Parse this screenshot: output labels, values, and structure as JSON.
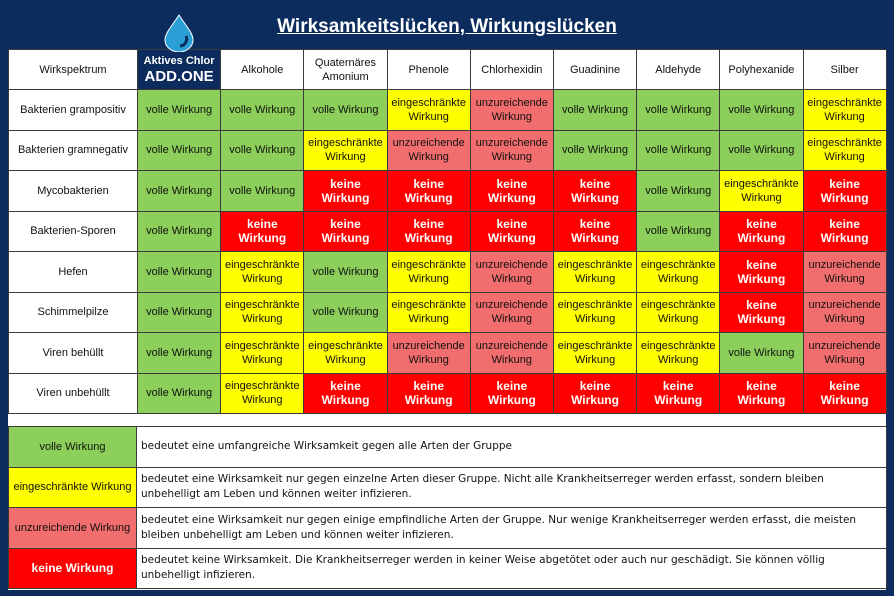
{
  "title": "Wirksamkeitslücken, Wirkungslücken",
  "table": {
    "columns": [
      "Wirkspektrum",
      {
        "top": "Aktives Chlor",
        "brand": "ADD.ONE"
      },
      "Alkohole",
      "Quaternäres Amonium",
      "Phenole",
      "Chlorhexidin",
      "Guadinine",
      "Aldehyde",
      "Polyhexanide",
      "Silber"
    ],
    "rows": [
      [
        "Bakterien grampositiv",
        "volle Wirkung",
        "volle Wirkung",
        "volle Wirkung",
        "eingeschränkte Wirkung",
        "unzureichende Wirkung",
        "volle Wirkung",
        "volle Wirkung",
        "volle Wirkung",
        "eingeschränkte Wirkung"
      ],
      [
        "Bakterien gramnegativ",
        "volle Wirkung",
        "volle Wirkung",
        "eingeschränkte Wirkung",
        "unzureichende Wirkung",
        "unzureichende Wirkung",
        "volle Wirkung",
        "volle Wirkung",
        "volle Wirkung",
        "eingeschränkte Wirkung"
      ],
      [
        "Mycobakterien",
        "volle Wirkung",
        "volle Wirkung",
        "keine Wirkung",
        "keine Wirkung",
        "keine Wirkung",
        "keine Wirkung",
        "volle Wirkung",
        "eingeschränkte Wirkung",
        "keine Wirkung"
      ],
      [
        "Bakterien-Sporen",
        "volle Wirkung",
        "keine Wirkung",
        "keine Wirkung",
        "keine Wirkung",
        "keine Wirkung",
        "keine Wirkung",
        "volle Wirkung",
        "keine Wirkung",
        "keine Wirkung"
      ],
      [
        "Hefen",
        "volle Wirkung",
        "eingeschränkte Wirkung",
        "volle Wirkung",
        "eingeschränkte Wirkung",
        "unzureichende Wirkung",
        "eingeschränkte Wirkung",
        "eingeschränkte Wirkung",
        "keine Wirkung",
        "unzureichende Wirkung"
      ],
      [
        "Schimmelpilze",
        "volle Wirkung",
        "eingeschränkte Wirkung",
        "volle Wirkung",
        "eingeschränkte Wirkung",
        "unzureichende Wirkung",
        "eingeschränkte Wirkung",
        "eingeschränkte Wirkung",
        "keine Wirkung",
        "unzureichende Wirkung"
      ],
      [
        "Viren behüllt",
        "volle Wirkung",
        "eingeschränkte Wirkung",
        "eingeschränkte Wirkung",
        "unzureichende Wirkung",
        "unzureichende Wirkung",
        "eingeschränkte Wirkung",
        "eingeschränkte Wirkung",
        "volle Wirkung",
        "unzureichende Wirkung"
      ],
      [
        "Viren unbehüllt",
        "volle Wirkung",
        "eingeschränkte Wirkung",
        "keine Wirkung",
        "keine Wirkung",
        "keine Wirkung",
        "keine Wirkung",
        "keine Wirkung",
        "keine Wirkung",
        "keine Wirkung"
      ]
    ]
  },
  "legend": {
    "items": [
      {
        "label": "volle Wirkung",
        "description": "bedeutet eine umfangreiche Wirksamkeit gegen alle Arten der Gruppe"
      },
      {
        "label": "eingeschränkte Wirkung",
        "description": "bedeutet eine Wirksamkeit nur gegen einzelne Arten dieser Gruppe. Nicht alle Krankheitserreger werden erfasst, sondern bleiben unbehelligt am Leben und können weiter infizieren."
      },
      {
        "label": "unzureichende Wirkung",
        "description": "bedeutet eine Wirksamkeit nur gegen einige empfindliche Arten der Gruppe. Nur wenige Krankheitserreger werden erfasst, die meisten bleiben unbehelligt am Leben und können weiter infizieren."
      },
      {
        "label": "keine Wirkung",
        "description": "bedeutet keine Wirksamkeit. Die Krankheitserreger werden in keiner Weise abgetötet oder auch nur geschädigt. Sie können völlig unbehelligt infizieren."
      }
    ]
  }
}
